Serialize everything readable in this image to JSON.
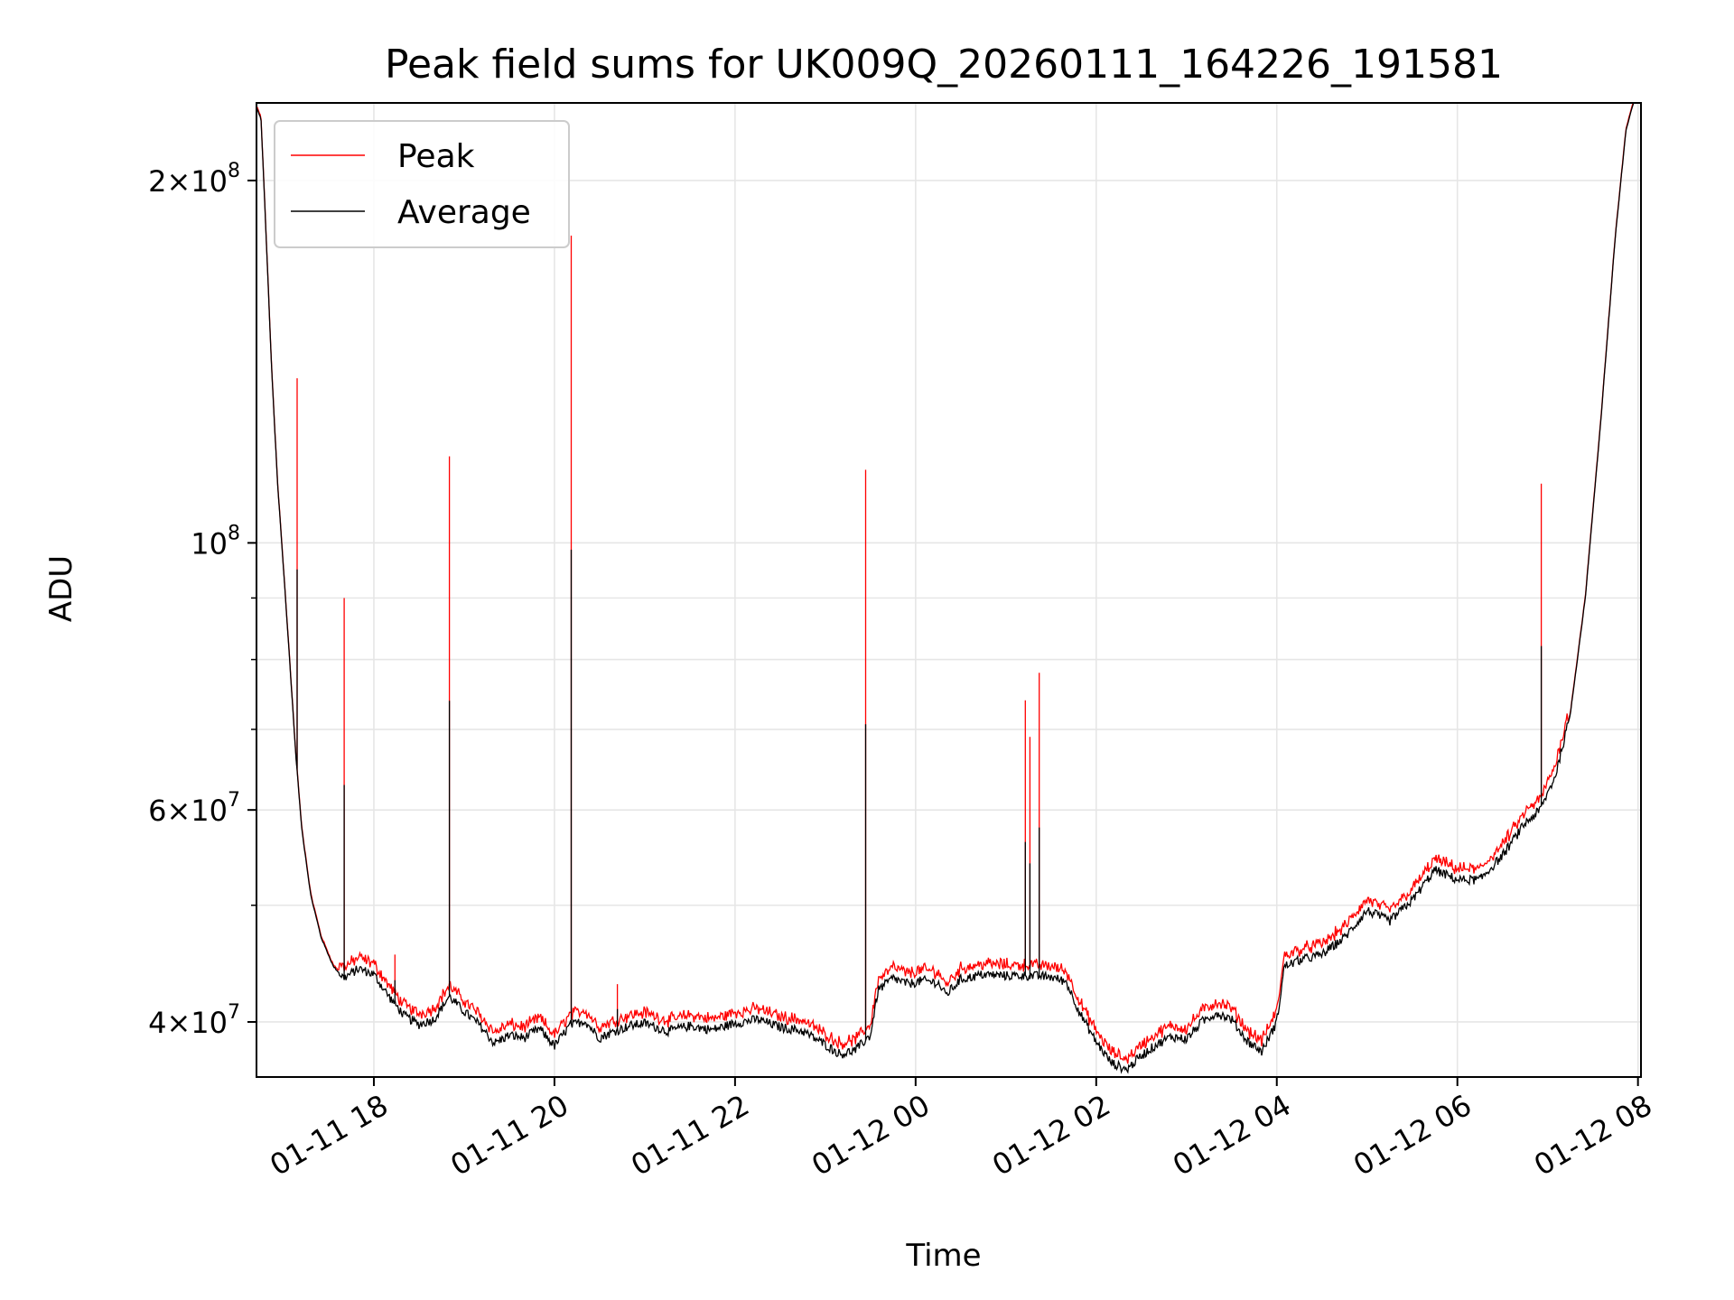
{
  "chart_data": {
    "type": "line",
    "title": "Peak field sums for UK009Q_20260111_164226_191581",
    "xlabel": "Time",
    "ylabel": "ADU",
    "x_range": [
      "2026-01-11 16:42",
      "2026-01-12 08:02"
    ],
    "ylim": [
      36000000,
      232000000
    ],
    "yscale": "log",
    "grid": true,
    "legend_position": "top-left",
    "x_ticks": [
      {
        "value": "2026-01-11 18:00",
        "label": "01-11 18"
      },
      {
        "value": "2026-01-11 20:00",
        "label": "01-11 20"
      },
      {
        "value": "2026-01-11 22:00",
        "label": "01-11 22"
      },
      {
        "value": "2026-01-12 00:00",
        "label": "01-12 00"
      },
      {
        "value": "2026-01-12 02:00",
        "label": "01-12 02"
      },
      {
        "value": "2026-01-12 04:00",
        "label": "01-12 04"
      },
      {
        "value": "2026-01-12 06:00",
        "label": "01-12 06"
      },
      {
        "value": "2026-01-12 08:00",
        "label": "01-12 08"
      }
    ],
    "y_ticks": [
      {
        "value": 40000000,
        "base": "4",
        "exp": "7"
      },
      {
        "value": 60000000,
        "base": "6",
        "exp": "7"
      },
      {
        "value": 100000000,
        "base": "",
        "exp": "8"
      },
      {
        "value": 200000000,
        "base": "2",
        "exp": "8"
      }
    ],
    "y_minor_ticks": [
      50000000,
      70000000,
      80000000,
      90000000
    ],
    "series": [
      {
        "name": "Average",
        "color": "#000000",
        "points": [
          [
            "2026-01-11 16:42",
            230000000
          ],
          [
            "2026-01-11 16:45",
            225000000
          ],
          [
            "2026-01-11 16:48",
            185000000
          ],
          [
            "2026-01-11 16:52",
            140000000
          ],
          [
            "2026-01-11 16:56",
            112000000
          ],
          [
            "2026-01-11 17:00",
            95000000
          ],
          [
            "2026-01-11 17:04",
            80000000
          ],
          [
            "2026-01-11 17:08",
            67000000
          ],
          [
            "2026-01-11 17:12",
            58000000
          ],
          [
            "2026-01-11 17:18",
            51000000
          ],
          [
            "2026-01-11 17:25",
            47000000
          ],
          [
            "2026-01-11 17:33",
            44500000
          ],
          [
            "2026-01-11 17:40",
            43500000
          ],
          [
            "2026-01-11 17:50",
            44300000
          ],
          [
            "2026-01-11 18:00",
            43800000
          ],
          [
            "2026-01-11 18:10",
            42000000
          ],
          [
            "2026-01-11 18:20",
            40500000
          ],
          [
            "2026-01-11 18:30",
            39800000
          ],
          [
            "2026-01-11 18:40",
            40200000
          ],
          [
            "2026-01-11 18:50",
            42000000
          ],
          [
            "2026-01-11 19:00",
            40800000
          ],
          [
            "2026-01-11 19:10",
            39800000
          ],
          [
            "2026-01-11 19:20",
            38400000
          ],
          [
            "2026-01-11 19:30",
            39000000
          ],
          [
            "2026-01-11 19:40",
            38800000
          ],
          [
            "2026-01-11 19:50",
            39500000
          ],
          [
            "2026-01-11 20:00",
            38200000
          ],
          [
            "2026-01-11 20:10",
            39700000
          ],
          [
            "2026-01-11 20:20",
            40100000
          ],
          [
            "2026-01-11 20:30",
            38800000
          ],
          [
            "2026-01-11 20:40",
            39300000
          ],
          [
            "2026-01-11 20:50",
            39700000
          ],
          [
            "2026-01-11 21:00",
            39900000
          ],
          [
            "2026-01-11 21:15",
            39300000
          ],
          [
            "2026-01-11 21:30",
            39700000
          ],
          [
            "2026-01-11 21:45",
            39400000
          ],
          [
            "2026-01-11 22:00",
            39900000
          ],
          [
            "2026-01-11 22:15",
            40200000
          ],
          [
            "2026-01-11 22:30",
            39600000
          ],
          [
            "2026-01-11 22:45",
            39300000
          ],
          [
            "2026-01-11 23:00",
            38300000
          ],
          [
            "2026-01-11 23:10",
            37600000
          ],
          [
            "2026-01-11 23:20",
            37900000
          ],
          [
            "2026-01-11 23:30",
            39000000
          ],
          [
            "2026-01-11 23:35",
            42500000
          ],
          [
            "2026-01-11 23:45",
            43500000
          ],
          [
            "2026-01-11 23:55",
            43000000
          ],
          [
            "2026-01-12 00:05",
            43300000
          ],
          [
            "2026-01-12 00:15",
            43100000
          ],
          [
            "2026-01-12 00:20",
            42100000
          ],
          [
            "2026-01-12 00:30",
            43400000
          ],
          [
            "2026-01-12 00:45",
            43800000
          ],
          [
            "2026-01-12 01:00",
            43700000
          ],
          [
            "2026-01-12 01:15",
            43700000
          ],
          [
            "2026-01-12 01:30",
            43600000
          ],
          [
            "2026-01-12 01:40",
            43200000
          ],
          [
            "2026-01-12 01:50",
            40500000
          ],
          [
            "2026-01-12 02:00",
            38500000
          ],
          [
            "2026-01-12 02:10",
            37000000
          ],
          [
            "2026-01-12 02:20",
            36500000
          ],
          [
            "2026-01-12 02:30",
            37500000
          ],
          [
            "2026-01-12 02:40",
            38300000
          ],
          [
            "2026-01-12 02:50",
            38900000
          ],
          [
            "2026-01-12 03:00",
            38700000
          ],
          [
            "2026-01-12 03:10",
            40000000
          ],
          [
            "2026-01-12 03:20",
            40700000
          ],
          [
            "2026-01-12 03:30",
            40200000
          ],
          [
            "2026-01-12 03:40",
            38600000
          ],
          [
            "2026-01-12 03:50",
            37800000
          ],
          [
            "2026-01-12 04:00",
            40000000
          ],
          [
            "2026-01-12 04:05",
            44500000
          ],
          [
            "2026-01-12 04:15",
            45000000
          ],
          [
            "2026-01-12 04:30",
            45500000
          ],
          [
            "2026-01-12 04:45",
            47000000
          ],
          [
            "2026-01-12 05:00",
            49500000
          ],
          [
            "2026-01-12 05:15",
            48500000
          ],
          [
            "2026-01-12 05:30",
            50500000
          ],
          [
            "2026-01-12 05:45",
            53500000
          ],
          [
            "2026-01-12 06:00",
            52500000
          ],
          [
            "2026-01-12 06:15",
            52500000
          ],
          [
            "2026-01-12 06:30",
            55000000
          ],
          [
            "2026-01-12 06:45",
            58500000
          ],
          [
            "2026-01-12 06:55",
            60000000
          ],
          [
            "2026-01-12 07:05",
            64000000
          ],
          [
            "2026-01-12 07:15",
            72000000
          ],
          [
            "2026-01-12 07:25",
            90000000
          ],
          [
            "2026-01-12 07:35",
            125000000
          ],
          [
            "2026-01-12 07:45",
            180000000
          ],
          [
            "2026-01-12 07:52",
            220000000
          ],
          [
            "2026-01-12 07:57",
            232000000
          ],
          [
            "2026-01-12 08:02",
            232000000
          ]
        ]
      },
      {
        "name": "Peak",
        "color": "#ff0000",
        "offset_ratio": 1.015,
        "spikes": [
          [
            "2026-01-11 17:09",
            137000000
          ],
          [
            "2026-01-11 17:40",
            90000000
          ],
          [
            "2026-01-11 18:14",
            45500000
          ],
          [
            "2026-01-11 18:50",
            118000000
          ],
          [
            "2026-01-11 20:11",
            180000000
          ],
          [
            "2026-01-11 20:42",
            43000000
          ],
          [
            "2026-01-11 23:27",
            115000000
          ],
          [
            "2026-01-12 01:13",
            74000000
          ],
          [
            "2026-01-12 01:16",
            69000000
          ],
          [
            "2026-01-12 01:22",
            78000000
          ],
          [
            "2026-01-12 06:56",
            112000000
          ]
        ]
      }
    ]
  }
}
